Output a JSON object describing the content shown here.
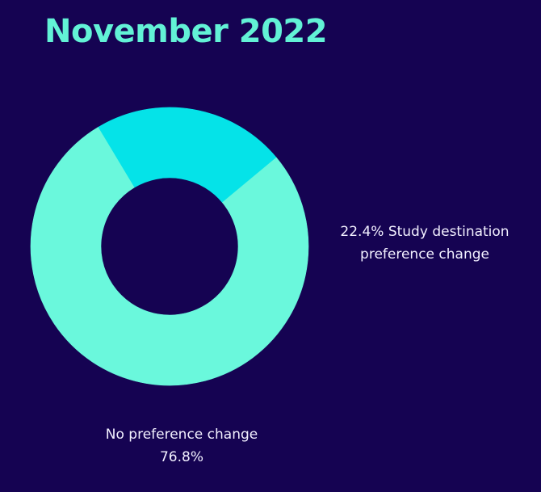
{
  "chart_data": {
    "type": "pie",
    "subtype": "donut",
    "title": "November 2022",
    "slices": [
      {
        "label": "Study destination preference change",
        "value": 22.4,
        "value_text": "22.4%",
        "color": "#05e3e8"
      },
      {
        "label": "No preference change",
        "value": 76.8,
        "value_text": "76.8%",
        "color": "#6af8dc"
      }
    ],
    "annotations": {
      "study_change": {
        "line1": "22.4% Study destination",
        "line2": "preference change"
      },
      "no_change": {
        "line1": "No preference change",
        "line2": "76.8%"
      }
    },
    "legend": "none",
    "grid": false
  },
  "colors": {
    "background": "#150352",
    "title": "#62f2d6",
    "label_text": "#f2f0ff"
  }
}
